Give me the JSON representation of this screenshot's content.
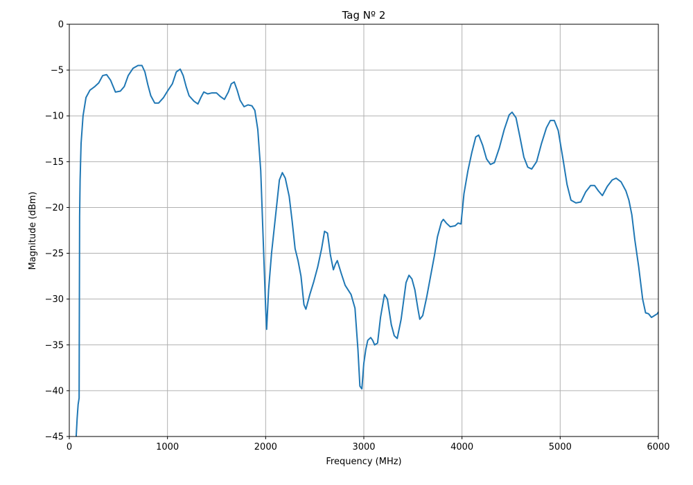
{
  "chart_data": {
    "type": "line",
    "title": "Tag Nº 2",
    "xlabel": "Frequency (MHz)",
    "ylabel": "Magnitude (dBm)",
    "xlim": [
      0,
      6000
    ],
    "ylim": [
      -45,
      0
    ],
    "xticks": [
      0,
      1000,
      2000,
      3000,
      4000,
      5000,
      6000
    ],
    "yticks": [
      0,
      -5,
      -10,
      -15,
      -20,
      -25,
      -30,
      -35,
      -40,
      -45
    ],
    "grid": true,
    "legend": "none",
    "colors": {
      "line": "#1f77b4",
      "grid": "#b0b0b0",
      "axis": "#000000"
    },
    "series": [
      {
        "points": [
          [
            70,
            -45
          ],
          [
            80,
            -43
          ],
          [
            90,
            -41.5
          ],
          [
            100,
            -40.8
          ],
          [
            105,
            -21
          ],
          [
            110,
            -17
          ],
          [
            120,
            -13
          ],
          [
            140,
            -10
          ],
          [
            170,
            -8
          ],
          [
            210,
            -7.2
          ],
          [
            260,
            -6.8
          ],
          [
            300,
            -6.4
          ],
          [
            340,
            -5.6
          ],
          [
            380,
            -5.5
          ],
          [
            420,
            -6.1
          ],
          [
            470,
            -7.4
          ],
          [
            520,
            -7.3
          ],
          [
            560,
            -6.8
          ],
          [
            600,
            -5.6
          ],
          [
            650,
            -4.8
          ],
          [
            700,
            -4.5
          ],
          [
            740,
            -4.5
          ],
          [
            770,
            -5.2
          ],
          [
            800,
            -6.6
          ],
          [
            830,
            -7.8
          ],
          [
            870,
            -8.6
          ],
          [
            910,
            -8.6
          ],
          [
            960,
            -8.0
          ],
          [
            1000,
            -7.3
          ],
          [
            1050,
            -6.5
          ],
          [
            1090,
            -5.2
          ],
          [
            1130,
            -4.9
          ],
          [
            1160,
            -5.6
          ],
          [
            1190,
            -6.8
          ],
          [
            1220,
            -7.8
          ],
          [
            1270,
            -8.4
          ],
          [
            1310,
            -8.7
          ],
          [
            1340,
            -8.0
          ],
          [
            1370,
            -7.4
          ],
          [
            1410,
            -7.6
          ],
          [
            1450,
            -7.5
          ],
          [
            1500,
            -7.5
          ],
          [
            1540,
            -7.9
          ],
          [
            1580,
            -8.2
          ],
          [
            1620,
            -7.4
          ],
          [
            1650,
            -6.5
          ],
          [
            1680,
            -6.3
          ],
          [
            1710,
            -7.2
          ],
          [
            1740,
            -8.3
          ],
          [
            1780,
            -9.0
          ],
          [
            1820,
            -8.8
          ],
          [
            1860,
            -8.9
          ],
          [
            1890,
            -9.4
          ],
          [
            1920,
            -11.5
          ],
          [
            1950,
            -16
          ],
          [
            1970,
            -22
          ],
          [
            1990,
            -28
          ],
          [
            2000,
            -31
          ],
          [
            2010,
            -33.3
          ],
          [
            2030,
            -29
          ],
          [
            2060,
            -25
          ],
          [
            2100,
            -21
          ],
          [
            2140,
            -17
          ],
          [
            2170,
            -16.2
          ],
          [
            2200,
            -16.8
          ],
          [
            2240,
            -18.8
          ],
          [
            2270,
            -21.5
          ],
          [
            2300,
            -24.5
          ],
          [
            2330,
            -25.8
          ],
          [
            2360,
            -27.5
          ],
          [
            2390,
            -30.6
          ],
          [
            2410,
            -31.1
          ],
          [
            2450,
            -29.5
          ],
          [
            2490,
            -28.1
          ],
          [
            2530,
            -26.5
          ],
          [
            2570,
            -24.5
          ],
          [
            2600,
            -22.6
          ],
          [
            2630,
            -22.8
          ],
          [
            2660,
            -25.2
          ],
          [
            2690,
            -26.8
          ],
          [
            2710,
            -26.2
          ],
          [
            2730,
            -25.8
          ],
          [
            2770,
            -27.2
          ],
          [
            2810,
            -28.5
          ],
          [
            2870,
            -29.5
          ],
          [
            2910,
            -31
          ],
          [
            2940,
            -35.5
          ],
          [
            2960,
            -39.5
          ],
          [
            2980,
            -39.8
          ],
          [
            3000,
            -37
          ],
          [
            3020,
            -35.5
          ],
          [
            3040,
            -34.5
          ],
          [
            3070,
            -34.2
          ],
          [
            3090,
            -34.5
          ],
          [
            3110,
            -35
          ],
          [
            3140,
            -34.8
          ],
          [
            3170,
            -32
          ],
          [
            3210,
            -29.5
          ],
          [
            3240,
            -30
          ],
          [
            3280,
            -32.8
          ],
          [
            3310,
            -34
          ],
          [
            3340,
            -34.3
          ],
          [
            3380,
            -32.2
          ],
          [
            3430,
            -28.2
          ],
          [
            3460,
            -27.4
          ],
          [
            3490,
            -27.8
          ],
          [
            3520,
            -29
          ],
          [
            3550,
            -31
          ],
          [
            3570,
            -32.2
          ],
          [
            3600,
            -31.8
          ],
          [
            3640,
            -29.8
          ],
          [
            3680,
            -27.5
          ],
          [
            3720,
            -25.2
          ],
          [
            3750,
            -23.2
          ],
          [
            3790,
            -21.6
          ],
          [
            3810,
            -21.3
          ],
          [
            3840,
            -21.7
          ],
          [
            3880,
            -22.1
          ],
          [
            3930,
            -22
          ],
          [
            3960,
            -21.7
          ],
          [
            3990,
            -21.8
          ],
          [
            4020,
            -18.5
          ],
          [
            4060,
            -16
          ],
          [
            4100,
            -14
          ],
          [
            4140,
            -12.3
          ],
          [
            4170,
            -12.1
          ],
          [
            4210,
            -13.2
          ],
          [
            4250,
            -14.7
          ],
          [
            4290,
            -15.3
          ],
          [
            4330,
            -15.1
          ],
          [
            4380,
            -13.5
          ],
          [
            4430,
            -11.5
          ],
          [
            4480,
            -9.9
          ],
          [
            4510,
            -9.6
          ],
          [
            4550,
            -10.2
          ],
          [
            4590,
            -12.3
          ],
          [
            4630,
            -14.5
          ],
          [
            4670,
            -15.6
          ],
          [
            4710,
            -15.8
          ],
          [
            4760,
            -15
          ],
          [
            4810,
            -13
          ],
          [
            4860,
            -11.3
          ],
          [
            4900,
            -10.5
          ],
          [
            4940,
            -10.5
          ],
          [
            4980,
            -11.6
          ],
          [
            5030,
            -14.8
          ],
          [
            5070,
            -17.5
          ],
          [
            5110,
            -19.2
          ],
          [
            5160,
            -19.5
          ],
          [
            5210,
            -19.4
          ],
          [
            5260,
            -18.3
          ],
          [
            5310,
            -17.6
          ],
          [
            5350,
            -17.6
          ],
          [
            5390,
            -18.2
          ],
          [
            5430,
            -18.7
          ],
          [
            5480,
            -17.7
          ],
          [
            5530,
            -17.0
          ],
          [
            5570,
            -16.8
          ],
          [
            5620,
            -17.2
          ],
          [
            5670,
            -18.2
          ],
          [
            5700,
            -19.2
          ],
          [
            5730,
            -20.8
          ],
          [
            5760,
            -23.5
          ],
          [
            5800,
            -26.5
          ],
          [
            5840,
            -30
          ],
          [
            5870,
            -31.5
          ],
          [
            5900,
            -31.6
          ],
          [
            5930,
            -32
          ],
          [
            5960,
            -31.8
          ],
          [
            5990,
            -31.6
          ],
          [
            6000,
            -31.4
          ]
        ]
      }
    ]
  }
}
